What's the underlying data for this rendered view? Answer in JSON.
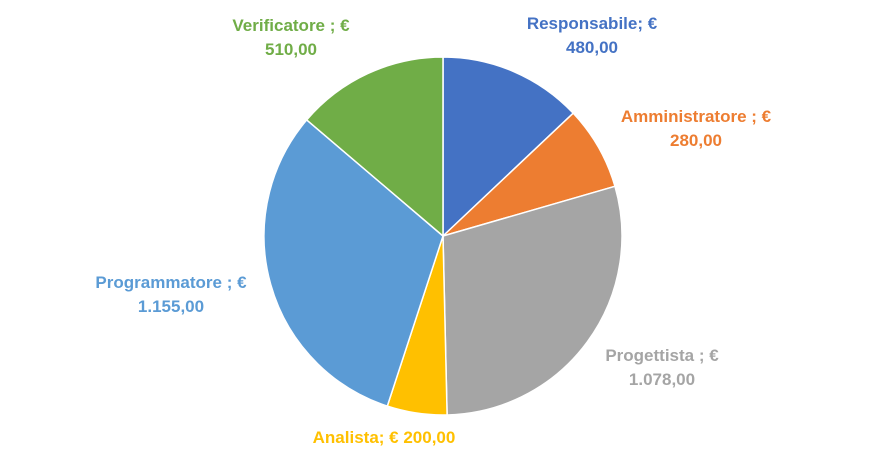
{
  "chart_data": {
    "type": "pie",
    "title": "",
    "legend": "none",
    "slices": [
      {
        "category": "Responsabile",
        "separator": ";",
        "value": 480.0,
        "value_label": "€ 480,00",
        "label_lines": [
          "Responsabile; €",
          "480,00"
        ],
        "color": "#4472C4"
      },
      {
        "category": "Amministratore",
        "separator": ";",
        "value": 280.0,
        "value_label": "€ 280,00",
        "label_lines": [
          "Amministratore ; €",
          "280,00"
        ],
        "color": "#ED7D31"
      },
      {
        "category": "Progettista",
        "separator": ";",
        "value": 1078.0,
        "value_label": "€ 1.078,00",
        "label_lines": [
          "Progettista ; €",
          "1.078,00"
        ],
        "color": "#A5A5A5"
      },
      {
        "category": "Analista",
        "separator": ";",
        "value": 200.0,
        "value_label": "€ 200,00",
        "label_lines": [
          "Analista; € 200,00"
        ],
        "color": "#FFC000"
      },
      {
        "category": "Programmatore",
        "separator": ";",
        "value": 1155.0,
        "value_label": "€ 1.155,00",
        "label_lines": [
          "Programmatore ; €",
          "1.155,00"
        ],
        "color": "#5B9BD5"
      },
      {
        "category": "Verificatore",
        "separator": ";",
        "value": 510.0,
        "value_label": "€ 510,00",
        "label_lines": [
          "Verificatore ; €",
          "510,00"
        ],
        "color": "#70AD47"
      }
    ]
  }
}
